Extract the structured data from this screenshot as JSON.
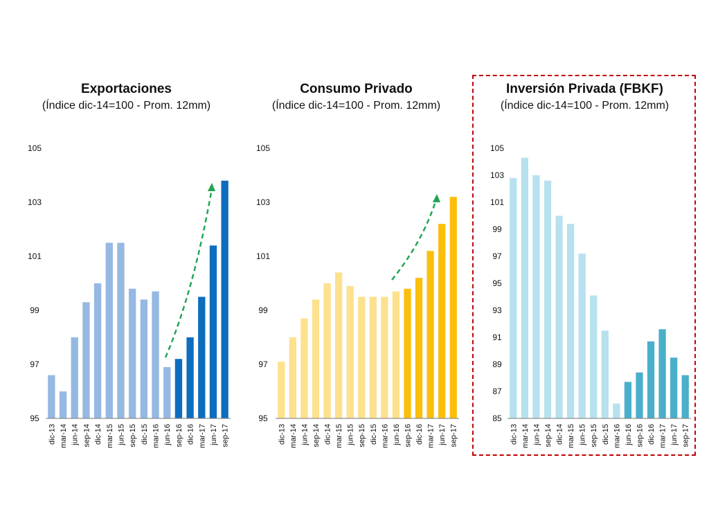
{
  "chart_data": [
    {
      "type": "bar",
      "title": "Exportaciones",
      "subtitle": "(Índice dic-14=100 - Prom. 12mm)",
      "categories": [
        "dic-13",
        "mar-14",
        "jun-14",
        "sep-14",
        "dic-14",
        "mar-15",
        "jun-15",
        "sep-15",
        "dic-15",
        "mar-16",
        "jun-16",
        "sep-16",
        "dic-16",
        "mar-17",
        "jun-17",
        "sep-17"
      ],
      "values": [
        96.6,
        96.0,
        98.0,
        99.3,
        100.0,
        101.5,
        101.5,
        99.8,
        99.4,
        99.7,
        96.9,
        97.2,
        98.0,
        99.5,
        101.4,
        103.8
      ],
      "ylim": [
        95,
        105
      ],
      "yticks": [
        "95",
        "97",
        "99",
        "101",
        "103",
        "105"
      ],
      "highlight_from_index": 11,
      "colors": {
        "base": "#95b9e3",
        "highlight": "#0f6dbf",
        "arrow": "#23a455"
      },
      "trend_arrow": true
    },
    {
      "type": "bar",
      "title": "Consumo Privado",
      "subtitle": "(Índice dic-14=100 - Prom. 12mm)",
      "categories": [
        "dic-13",
        "mar-14",
        "jun-14",
        "sep-14",
        "dic-14",
        "mar-15",
        "jun-15",
        "sep-15",
        "dic-15",
        "mar-16",
        "jun-16",
        "sep-16",
        "dic-16",
        "mar-17",
        "jun-17",
        "sep-17"
      ],
      "values": [
        97.1,
        98.0,
        98.7,
        99.4,
        100.0,
        100.4,
        99.9,
        99.5,
        99.5,
        99.5,
        99.7,
        99.8,
        100.2,
        101.2,
        102.2,
        103.2
      ],
      "ylim": [
        95,
        105
      ],
      "yticks": [
        "95",
        "97",
        "99",
        "101",
        "103",
        "105"
      ],
      "highlight_from_index": 11,
      "colors": {
        "base": "#fde18d",
        "highlight": "#fbbf0b",
        "arrow": "#23a455"
      },
      "trend_arrow": true
    },
    {
      "type": "bar",
      "title": "Inversión Privada (FBKF)",
      "subtitle": "(Índice dic-14=100 - Prom. 12mm)",
      "categories": [
        "dic-13",
        "mar-14",
        "jun-14",
        "sep-14",
        "dic-14",
        "mar-15",
        "jun-15",
        "sep-15",
        "dic-15",
        "mar-16",
        "jun-16",
        "sep-16",
        "dic-16",
        "mar-17",
        "jun-17",
        "sep-17"
      ],
      "values": [
        102.8,
        104.3,
        103.0,
        102.6,
        100.0,
        99.4,
        97.2,
        94.1,
        91.5,
        86.1,
        87.7,
        88.4,
        90.7,
        91.6,
        89.5,
        88.2
      ],
      "ylim": [
        85,
        105
      ],
      "yticks": [
        "85",
        "87",
        "89",
        "91",
        "93",
        "95",
        "97",
        "99",
        "101",
        "103",
        "105"
      ],
      "highlight_from_index": 10,
      "colors": {
        "base": "#b7e1ee",
        "highlight": "#4aafca",
        "arrow": "#23a455"
      },
      "trend_arrow": false,
      "highlight_border": "#c00000"
    }
  ]
}
